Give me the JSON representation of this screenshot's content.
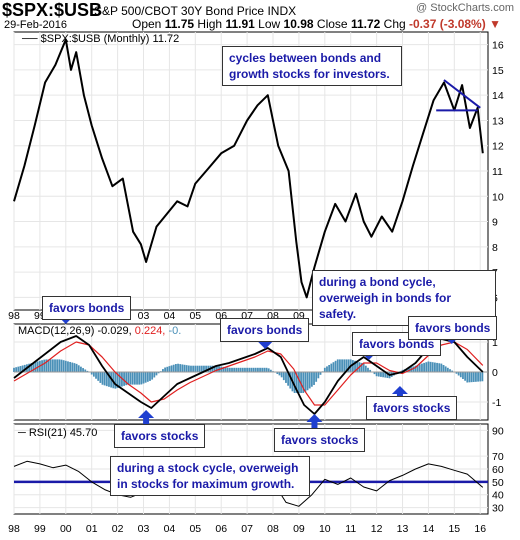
{
  "header": {
    "symbol": "$SPX:$USB",
    "subtitle": "S&P 500/CBOT 30Y Bond Price INDX",
    "watermark": "@ StockCharts.com",
    "date": "29-Feb-2016",
    "open_label": "Open",
    "open": "11.75",
    "high_label": "High",
    "high": "11.91",
    "low_label": "Low",
    "low": "10.98",
    "close_label": "Close",
    "close": "11.72",
    "chg_label": "Chg",
    "chg": "-0.37 (-3.08%)"
  },
  "colors": {
    "price": "#000000",
    "signal": "#e02020",
    "histogram": "#4a90b8",
    "annotation": "#1a1aa8",
    "arrow": "#1f3fd0",
    "trendline": "#1a1aa8"
  },
  "annotations": {
    "cycles": [
      "cycles between bonds and",
      "growth stocks for investors."
    ],
    "bond_cycle": [
      "during a bond cycle,",
      "overweigh in bonds for safety."
    ],
    "stock_cycle": [
      "during a stock cycle, overweigh",
      "in stocks for maximum growth."
    ],
    "favors_bonds": "favors bonds",
    "favors_stocks": "favors stocks"
  },
  "chart_data": [
    {
      "type": "line",
      "legend": "$SPX:$USB (Monthly) 11.72",
      "x": [
        1998.0,
        1998.4,
        1998.8,
        1999.2,
        1999.6,
        2000.0,
        2000.2,
        2000.4,
        2000.7,
        2001.0,
        2001.4,
        2001.8,
        2002.2,
        2002.6,
        2002.9,
        2003.1,
        2003.5,
        2003.9,
        2004.3,
        2004.7,
        2005.0,
        2005.5,
        2006.0,
        2006.5,
        2007.0,
        2007.4,
        2007.8,
        2008.2,
        2008.6,
        2008.9,
        2009.1,
        2009.3,
        2009.6,
        2010.0,
        2010.4,
        2010.8,
        2011.2,
        2011.5,
        2011.8,
        2012.2,
        2012.6,
        2013.0,
        2013.4,
        2013.8,
        2014.2,
        2014.6,
        2015.0,
        2015.3,
        2015.6,
        2015.9,
        2016.1
      ],
      "values": [
        9.8,
        11.2,
        12.8,
        14.5,
        15.2,
        16.2,
        15.0,
        15.7,
        14.0,
        12.8,
        11.5,
        10.4,
        10.7,
        8.6,
        8.1,
        7.4,
        8.8,
        9.3,
        9.8,
        9.6,
        10.5,
        11.1,
        11.7,
        12.0,
        13.0,
        13.6,
        14.0,
        12.0,
        11.0,
        8.2,
        6.6,
        6.0,
        7.2,
        8.6,
        9.7,
        9.0,
        10.1,
        9.0,
        8.4,
        9.2,
        8.6,
        9.8,
        11.2,
        12.5,
        13.8,
        14.5,
        13.4,
        14.4,
        12.7,
        13.5,
        11.7
      ],
      "ylim": [
        5.5,
        16.5
      ],
      "yticks": [
        "16",
        "15",
        "14",
        "13",
        "12",
        "11",
        "10",
        "9",
        "8",
        "7",
        "6"
      ]
    },
    {
      "type": "line",
      "legend_prefix": "MACD(12,26,9) -0.029,",
      "legend_signal": "0.224,",
      "legend_hist": "-0.",
      "x": [
        1998.0,
        1998.6,
        1999.2,
        1999.8,
        2000.4,
        2000.9,
        2001.4,
        2001.9,
        2002.4,
        2002.9,
        2003.3,
        2003.8,
        2004.3,
        2004.8,
        2005.3,
        2005.8,
        2006.3,
        2006.8,
        2007.3,
        2007.8,
        2008.3,
        2008.8,
        2009.2,
        2009.6,
        2010.0,
        2010.5,
        2011.0,
        2011.5,
        2012.0,
        2012.5,
        2013.0,
        2013.5,
        2014.0,
        2014.5,
        2015.0,
        2015.5,
        2016.1
      ],
      "macd": [
        -0.2,
        0.2,
        0.6,
        1.0,
        1.2,
        0.9,
        0.2,
        -0.4,
        -0.7,
        -1.0,
        -1.2,
        -0.8,
        -0.4,
        -0.2,
        0.0,
        0.2,
        0.3,
        0.45,
        0.6,
        0.8,
        0.5,
        -0.4,
        -1.1,
        -1.4,
        -1.0,
        -0.3,
        0.2,
        0.5,
        0.2,
        -0.1,
        0.0,
        0.3,
        0.8,
        1.1,
        1.0,
        0.5,
        0.0
      ],
      "signal": [
        -0.3,
        0.0,
        0.3,
        0.7,
        1.0,
        0.9,
        0.5,
        0.0,
        -0.4,
        -0.7,
        -1.0,
        -0.9,
        -0.6,
        -0.35,
        -0.15,
        0.05,
        0.2,
        0.35,
        0.5,
        0.7,
        0.6,
        0.1,
        -0.6,
        -1.1,
        -1.1,
        -0.6,
        -0.1,
        0.3,
        0.3,
        0.05,
        -0.05,
        0.15,
        0.55,
        0.9,
        1.0,
        0.75,
        0.22
      ],
      "ylim": [
        -1.6,
        1.6
      ],
      "yticks": [
        "1",
        "0",
        "-1"
      ]
    },
    {
      "type": "line",
      "legend": "RSI(21) 45.70",
      "x": [
        1998.0,
        1998.5,
        1999.0,
        1999.5,
        2000.0,
        2000.5,
        2001.0,
        2001.5,
        2002.0,
        2002.5,
        2003.0,
        2003.5,
        2004.0,
        2004.5,
        2005.0,
        2005.5,
        2006.0,
        2006.5,
        2007.0,
        2007.5,
        2008.0,
        2008.5,
        2009.0,
        2009.5,
        2010.0,
        2010.5,
        2011.0,
        2011.5,
        2012.0,
        2012.5,
        2013.0,
        2013.5,
        2014.0,
        2014.5,
        2015.0,
        2015.5,
        2016.1
      ],
      "values": [
        62,
        66,
        64,
        61,
        63,
        58,
        50,
        44,
        40,
        38,
        42,
        50,
        54,
        51,
        56,
        58,
        60,
        61,
        63,
        60,
        50,
        34,
        31,
        40,
        52,
        48,
        53,
        46,
        43,
        51,
        55,
        60,
        64,
        62,
        59,
        56,
        45.7
      ],
      "ylim": [
        25,
        95
      ],
      "yticks": [
        "90",
        "70",
        "60",
        "50",
        "40",
        "30"
      ]
    }
  ],
  "x_axis": {
    "labels": [
      "98",
      "99",
      "00",
      "01",
      "02",
      "03",
      "04",
      "05",
      "06",
      "07",
      "08",
      "09",
      "10",
      "11",
      "12",
      "13",
      "14",
      "15",
      "16"
    ],
    "start_year": 1998
  }
}
